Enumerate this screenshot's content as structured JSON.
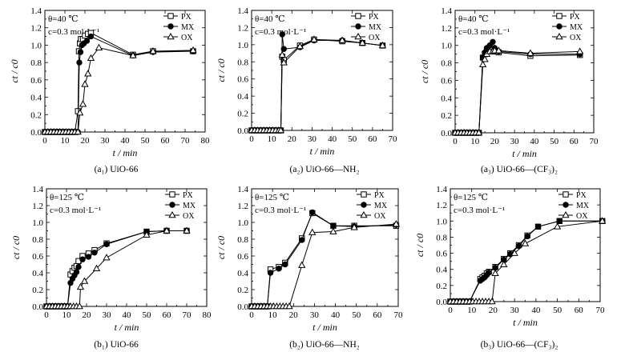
{
  "figure": {
    "legend_series": [
      "PX",
      "MX",
      "OX"
    ],
    "series_markers": {
      "PX": "open-square",
      "MX": "filled-circle",
      "OX": "open-triangle"
    },
    "line_color": "#000000"
  },
  "chart_data": [
    {
      "id": "a1",
      "type": "line",
      "caption": "(a₁) UiO-66",
      "condition_temp": "θ=40 ℃",
      "condition_conc": "c=0.3 mol·L⁻¹",
      "xlabel": "t / min",
      "ylabel": "ct / c0",
      "xlim": [
        0,
        80
      ],
      "ylim": [
        0,
        1.4
      ],
      "xticks": [
        0,
        10,
        20,
        30,
        40,
        50,
        60,
        70,
        80
      ],
      "yticks": [
        0.0,
        0.2,
        0.4,
        0.6,
        0.8,
        1.0,
        1.2,
        1.4
      ],
      "grid": false,
      "legend_position": "top-right",
      "series": [
        {
          "name": "PX",
          "x": [
            0,
            1.5,
            3,
            4.5,
            6,
            7.5,
            9,
            10.5,
            12,
            13.5,
            15,
            16.5,
            17,
            17.5,
            18,
            19,
            20,
            21.5,
            23,
            44,
            54,
            74
          ],
          "y": [
            0,
            0,
            0,
            0,
            0,
            0,
            0,
            0,
            0,
            0,
            0,
            0.24,
            0.93,
            1.02,
            1.07,
            1.07,
            1.11,
            1.13,
            1.14,
            0.89,
            0.93,
            0.93
          ]
        },
        {
          "name": "MX",
          "x": [
            0,
            1.5,
            3,
            4.5,
            6,
            7.5,
            9,
            10.5,
            12,
            13.5,
            15,
            16.5,
            17.2,
            17.8,
            18.5,
            19.5,
            21,
            23,
            44,
            54,
            74
          ],
          "y": [
            0,
            0,
            0,
            0,
            0,
            0,
            0,
            0,
            0,
            0,
            0,
            0,
            0.8,
            0.92,
            1.0,
            1.02,
            1.05,
            1.1,
            0.88,
            0.92,
            0.93
          ]
        },
        {
          "name": "OX",
          "x": [
            0,
            1.5,
            3,
            4.5,
            6,
            7.5,
            9,
            10.5,
            12,
            13.5,
            15,
            16.5,
            17.5,
            19,
            20,
            21.5,
            23,
            27,
            44,
            54,
            74
          ],
          "y": [
            0,
            0,
            0,
            0,
            0,
            0,
            0,
            0,
            0,
            0,
            0,
            0,
            0.22,
            0.32,
            0.55,
            0.67,
            0.85,
            0.97,
            0.88,
            0.93,
            0.94
          ]
        }
      ]
    },
    {
      "id": "a2",
      "type": "line",
      "caption": "(a₂) UiO-66—NH₂",
      "condition_temp": "θ=40 ℃",
      "condition_conc": "c=0.3 mol·L⁻¹",
      "xlabel": "t / min",
      "ylabel": "ct / c0",
      "xlim": [
        0,
        70
      ],
      "ylim": [
        0,
        1.4
      ],
      "xticks": [
        0,
        10,
        20,
        30,
        40,
        50,
        60,
        70
      ],
      "yticks": [
        0.0,
        0.2,
        0.4,
        0.6,
        0.8,
        1.0,
        1.2,
        1.4
      ],
      "grid": false,
      "legend_position": "top-right",
      "series": [
        {
          "name": "PX",
          "x": [
            0,
            1.5,
            3,
            4.5,
            6,
            7.5,
            9,
            10.5,
            12,
            13.5,
            14.5,
            15.2,
            16,
            24,
            31,
            45,
            55,
            65
          ],
          "y": [
            0,
            0,
            0,
            0,
            0,
            0,
            0,
            0,
            0,
            0,
            0,
            0.86,
            0.82,
            0.99,
            1.06,
            1.04,
            1.02,
            0.99
          ]
        },
        {
          "name": "MX",
          "x": [
            0,
            1.5,
            3,
            4.5,
            6,
            7.5,
            9,
            10.5,
            12,
            13.5,
            14.5,
            15.2,
            16,
            24,
            31,
            45,
            55,
            65
          ],
          "y": [
            0,
            0,
            0,
            0,
            0,
            0,
            0,
            0,
            0,
            0,
            0,
            1.12,
            0.95,
            0.97,
            1.05,
            1.05,
            1.02,
            0.99
          ]
        },
        {
          "name": "OX",
          "x": [
            0,
            1.5,
            3,
            4.5,
            6,
            7.5,
            9,
            10.5,
            12,
            13.5,
            14.5,
            15.2,
            16,
            24,
            31,
            45,
            55,
            65
          ],
          "y": [
            0,
            0,
            0,
            0,
            0,
            0,
            0,
            0,
            0,
            0,
            0,
            0.88,
            0.79,
            0.98,
            1.06,
            1.05,
            1.02,
            0.99
          ]
        }
      ]
    },
    {
      "id": "a3",
      "type": "line",
      "caption": "(a₃) UiO-66—(CF₃)₂",
      "condition_temp": "θ=40 ℃",
      "condition_conc": "c=0.3 mol·L⁻¹",
      "xlabel": "t / min",
      "ylabel": "ct / c0",
      "xlim": [
        0,
        70
      ],
      "ylim": [
        0,
        1.4
      ],
      "xticks": [
        0,
        10,
        20,
        30,
        40,
        50,
        60,
        70
      ],
      "yticks": [
        0.0,
        0.2,
        0.4,
        0.6,
        0.8,
        1.0,
        1.2,
        1.4
      ],
      "grid": false,
      "legend_position": "top-right",
      "series": [
        {
          "name": "PX",
          "x": [
            0,
            1.5,
            3,
            4.5,
            6,
            7.5,
            9,
            10.5,
            12,
            14,
            15,
            16,
            17.5,
            19,
            20,
            22,
            38,
            63
          ],
          "y": [
            0,
            0,
            0,
            0,
            0,
            0,
            0,
            0,
            0,
            0.86,
            0.9,
            0.95,
            0.95,
            0.93,
            0.93,
            0.92,
            0.88,
            0.89
          ]
        },
        {
          "name": "MX",
          "x": [
            0,
            1.5,
            3,
            4.5,
            6,
            7.5,
            9,
            10.5,
            12,
            14,
            15,
            16,
            17.5,
            19,
            20,
            22,
            38,
            63
          ],
          "y": [
            0,
            0,
            0,
            0,
            0,
            0,
            0,
            0,
            0,
            0.86,
            0.92,
            0.97,
            1.0,
            1.04,
            0.97,
            0.93,
            0.9,
            0.9
          ]
        },
        {
          "name": "OX",
          "x": [
            0,
            1.5,
            3,
            4.5,
            6,
            7.5,
            9,
            10.5,
            12,
            14,
            15,
            16,
            17.5,
            19,
            20,
            22,
            38,
            63
          ],
          "y": [
            0,
            0,
            0,
            0,
            0,
            0,
            0,
            0,
            0,
            0.78,
            0.84,
            0.9,
            0.93,
            0.93,
            0.94,
            0.94,
            0.91,
            0.93
          ]
        }
      ]
    },
    {
      "id": "b1",
      "type": "line",
      "caption": "(b₁) UiO-66",
      "condition_temp": "θ=125 ℃",
      "condition_conc": "c=0.3 mol·L⁻¹",
      "xlabel": "t / min",
      "ylabel": "ct / c0",
      "xlim": [
        0,
        80
      ],
      "ylim": [
        0,
        1.4
      ],
      "xticks": [
        0,
        10,
        20,
        30,
        40,
        50,
        60,
        70,
        80
      ],
      "yticks": [
        0.0,
        0.2,
        0.4,
        0.6,
        0.8,
        1.0,
        1.2,
        1.4
      ],
      "grid": false,
      "legend_position": "top-right",
      "series": [
        {
          "name": "PX",
          "x": [
            0,
            1.5,
            3,
            4.5,
            6,
            7.5,
            9,
            10.5,
            12,
            13,
            14,
            15,
            16,
            18,
            21,
            24,
            30,
            50,
            60,
            70
          ],
          "y": [
            0,
            0,
            0,
            0,
            0,
            0,
            0,
            0,
            0.38,
            0.42,
            0.46,
            0.48,
            0.54,
            0.6,
            0.63,
            0.67,
            0.75,
            0.89,
            0.9,
            0.9
          ]
        },
        {
          "name": "MX",
          "x": [
            0,
            1.5,
            3,
            4.5,
            6,
            7.5,
            9,
            10.5,
            12,
            13,
            14,
            15,
            16,
            18,
            21,
            24,
            30,
            50,
            60,
            70
          ],
          "y": [
            0,
            0,
            0,
            0,
            0,
            0,
            0,
            0,
            0.28,
            0.33,
            0.37,
            0.41,
            0.47,
            0.56,
            0.59,
            0.64,
            0.74,
            0.89,
            0.9,
            0.9
          ]
        },
        {
          "name": "OX",
          "x": [
            0,
            1.5,
            3,
            4.5,
            6,
            7.5,
            9,
            10.5,
            12,
            13.5,
            15,
            16.5,
            17,
            19,
            25,
            30,
            50,
            60,
            70
          ],
          "y": [
            0,
            0,
            0,
            0,
            0,
            0,
            0,
            0,
            0,
            0,
            0,
            0,
            0.23,
            0.3,
            0.45,
            0.58,
            0.85,
            0.9,
            0.9
          ]
        }
      ]
    },
    {
      "id": "b2",
      "type": "line",
      "caption": "(b₂) UiO-66—NH₂",
      "condition_temp": "θ=125 ℃",
      "condition_conc": "c=0.3 mol·L⁻¹",
      "xlabel": "t / min",
      "ylabel": "ct / c0",
      "xlim": [
        0,
        70
      ],
      "ylim": [
        0,
        1.4
      ],
      "xticks": [
        0,
        10,
        20,
        30,
        40,
        50,
        60,
        70
      ],
      "yticks": [
        0.0,
        0.2,
        0.4,
        0.6,
        0.8,
        1.0,
        1.2,
        1.4
      ],
      "grid": false,
      "legend_position": "top-right",
      "series": [
        {
          "name": "PX",
          "x": [
            0,
            1.5,
            3,
            4.5,
            6,
            7.5,
            9,
            13,
            16,
            24,
            29,
            39,
            49,
            69
          ],
          "y": [
            0,
            0,
            0,
            0,
            0,
            0,
            0.44,
            0.47,
            0.52,
            0.81,
            1.11,
            0.96,
            0.96,
            0.96
          ]
        },
        {
          "name": "MX",
          "x": [
            0,
            1.5,
            3,
            4.5,
            6,
            7.5,
            9,
            13,
            16,
            24,
            29,
            39,
            49,
            69
          ],
          "y": [
            0,
            0,
            0,
            0,
            0,
            0,
            0.4,
            0.45,
            0.5,
            0.79,
            1.12,
            0.96,
            0.95,
            0.97
          ]
        },
        {
          "name": "OX",
          "x": [
            0,
            1.5,
            3,
            4.5,
            6,
            7.5,
            9,
            10.5,
            12,
            13.5,
            15,
            16.5,
            18,
            24,
            29,
            39,
            49,
            69
          ],
          "y": [
            0,
            0,
            0,
            0,
            0,
            0,
            0,
            0,
            0,
            0,
            0,
            0,
            0,
            0.49,
            0.88,
            0.89,
            0.94,
            0.98
          ]
        }
      ]
    },
    {
      "id": "b3",
      "type": "line",
      "caption": "(b₃) UiO-66—(CF₃)₂",
      "condition_temp": "θ=125 ℃",
      "condition_conc": "c=0.3 mol·L⁻¹",
      "xlabel": "t / min",
      "ylabel": "ct / c0",
      "xlim": [
        0,
        70
      ],
      "ylim": [
        0,
        1.4
      ],
      "xticks": [
        0,
        10,
        20,
        30,
        40,
        50,
        60,
        70
      ],
      "yticks": [
        0.0,
        0.2,
        0.4,
        0.6,
        0.8,
        1.0,
        1.2,
        1.4
      ],
      "grid": false,
      "legend_position": "top-right",
      "series": [
        {
          "name": "PX",
          "x": [
            0,
            1.5,
            3,
            4.5,
            6,
            7.5,
            9,
            14,
            15,
            16,
            17,
            18,
            21,
            25,
            28,
            32,
            36,
            41,
            51,
            71
          ],
          "y": [
            0,
            0,
            0,
            0,
            0,
            0,
            0,
            0.28,
            0.3,
            0.32,
            0.35,
            0.37,
            0.43,
            0.53,
            0.6,
            0.7,
            0.82,
            0.93,
            1.0,
            1.0
          ]
        },
        {
          "name": "MX",
          "x": [
            0,
            1.5,
            3,
            4.5,
            6,
            7.5,
            9,
            14,
            15,
            16,
            17,
            18,
            21,
            25,
            28,
            32,
            36,
            41,
            51,
            71
          ],
          "y": [
            0,
            0,
            0,
            0,
            0,
            0,
            0,
            0.26,
            0.28,
            0.3,
            0.33,
            0.36,
            0.42,
            0.52,
            0.59,
            0.69,
            0.81,
            0.93,
            1.0,
            1.0
          ]
        },
        {
          "name": "OX",
          "x": [
            0,
            1.5,
            3,
            4.5,
            6,
            7.5,
            9,
            10.5,
            12,
            13.5,
            15,
            16.5,
            18,
            19.5,
            21,
            25,
            30,
            35,
            50,
            71
          ],
          "y": [
            0,
            0,
            0,
            0,
            0,
            0,
            0,
            0,
            0,
            0,
            0,
            0,
            0,
            0,
            0.35,
            0.46,
            0.6,
            0.72,
            0.93,
            1.0
          ]
        }
      ]
    }
  ]
}
